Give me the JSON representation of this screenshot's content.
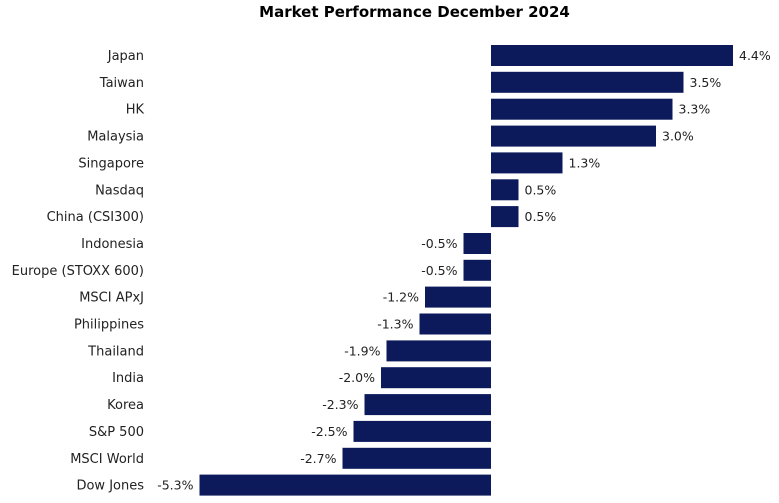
{
  "chart_data": {
    "type": "bar",
    "orientation": "horizontal",
    "title": "Market Performance December 2024",
    "xlabel": "",
    "ylabel": "",
    "unit": "%",
    "xlim": [
      -5.3,
      4.4
    ],
    "grid": false,
    "legend": "none",
    "bar_color": "#0c1a5b",
    "categories": [
      "Japan",
      "Taiwan",
      "HK",
      "Malaysia",
      "Singapore",
      "Nasdaq",
      "China (CSI300)",
      "Indonesia",
      "Europe (STOXX 600)",
      "MSCI APxJ",
      "Philippines",
      "Thailand",
      "India",
      "Korea",
      "S&P 500",
      "MSCI World",
      "Dow Jones"
    ],
    "values": [
      4.4,
      3.5,
      3.3,
      3.0,
      1.3,
      0.5,
      0.5,
      -0.5,
      -0.5,
      -1.2,
      -1.3,
      -1.9,
      -2.0,
      -2.3,
      -2.5,
      -2.7,
      -5.3
    ],
    "value_labels": [
      "4.4%",
      "3.5%",
      "3.3%",
      "3.0%",
      "1.3%",
      "0.5%",
      "0.5%",
      "-0.5%",
      "-0.5%",
      "-1.2%",
      "-1.3%",
      "-1.9%",
      "-2.0%",
      "-2.3%",
      "-2.5%",
      "-2.7%",
      "-5.3%"
    ]
  }
}
